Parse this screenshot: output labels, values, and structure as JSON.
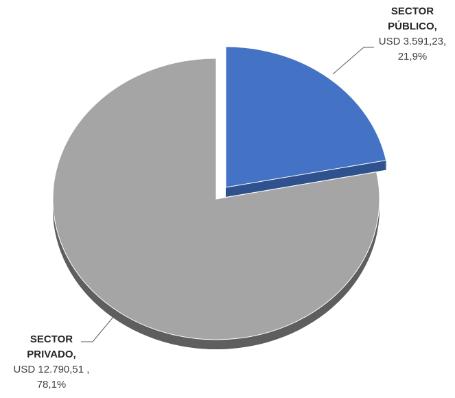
{
  "chart_data": {
    "type": "pie",
    "style": "3d-exploded",
    "slices": [
      {
        "label": "SECTOR PÚBLICO",
        "name_line1": "SECTOR",
        "name_line2": "PÚBLICO,",
        "value": 3591.23,
        "value_text": "USD 3.591,23,",
        "percent": 21.9,
        "percent_text": "21,9%",
        "color": "#4472C4",
        "side_color": "#2F528F",
        "exploded": true
      },
      {
        "label": "SECTOR PRIVADO",
        "name_line1": "SECTOR",
        "name_line2": "PRIVADO,",
        "value": 12790.51,
        "value_text": "USD 12.790,51 ,",
        "percent": 78.1,
        "percent_text": "78,1%",
        "color": "#A5A5A5",
        "side_color": "#5E5E5E",
        "exploded": false
      }
    ],
    "title": "",
    "legend": "none",
    "leader_line_color": "#595959"
  }
}
